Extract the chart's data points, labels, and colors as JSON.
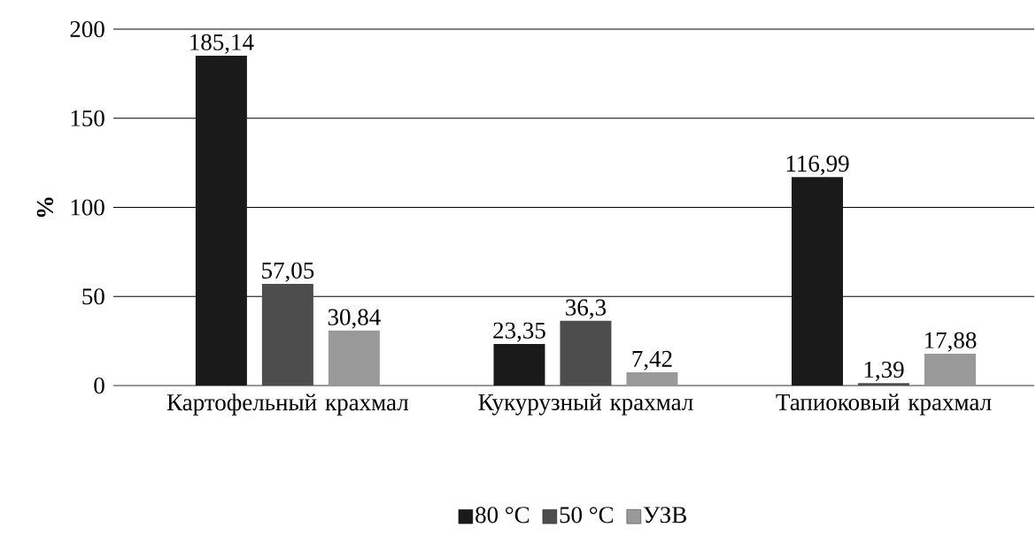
{
  "chart_data": {
    "type": "bar",
    "ylabel": "%",
    "categories": [
      "Картофельный крахмал",
      "Кукурузный крахмал",
      "Тапиоковый крахмал"
    ],
    "series": [
      {
        "name": "80 °C",
        "color": "#1a1a1a",
        "values": [
          185.14,
          23.35,
          116.99
        ],
        "value_labels": [
          "185,14",
          "23,35",
          "116,99"
        ]
      },
      {
        "name": "50 °C",
        "color": "#4d4d4d",
        "values": [
          57.05,
          36.3,
          1.39
        ],
        "value_labels": [
          "57,05",
          "36,3",
          "1,39"
        ]
      },
      {
        "name": "УЗВ",
        "color": "#999999",
        "values": [
          30.84,
          7.42,
          17.88
        ],
        "value_labels": [
          "30,84",
          "7,42",
          "17,88"
        ]
      }
    ],
    "ylim": [
      0,
      200
    ],
    "yticks": [
      0,
      50,
      100,
      150,
      200
    ],
    "grid": "y",
    "legend": "bottom"
  }
}
